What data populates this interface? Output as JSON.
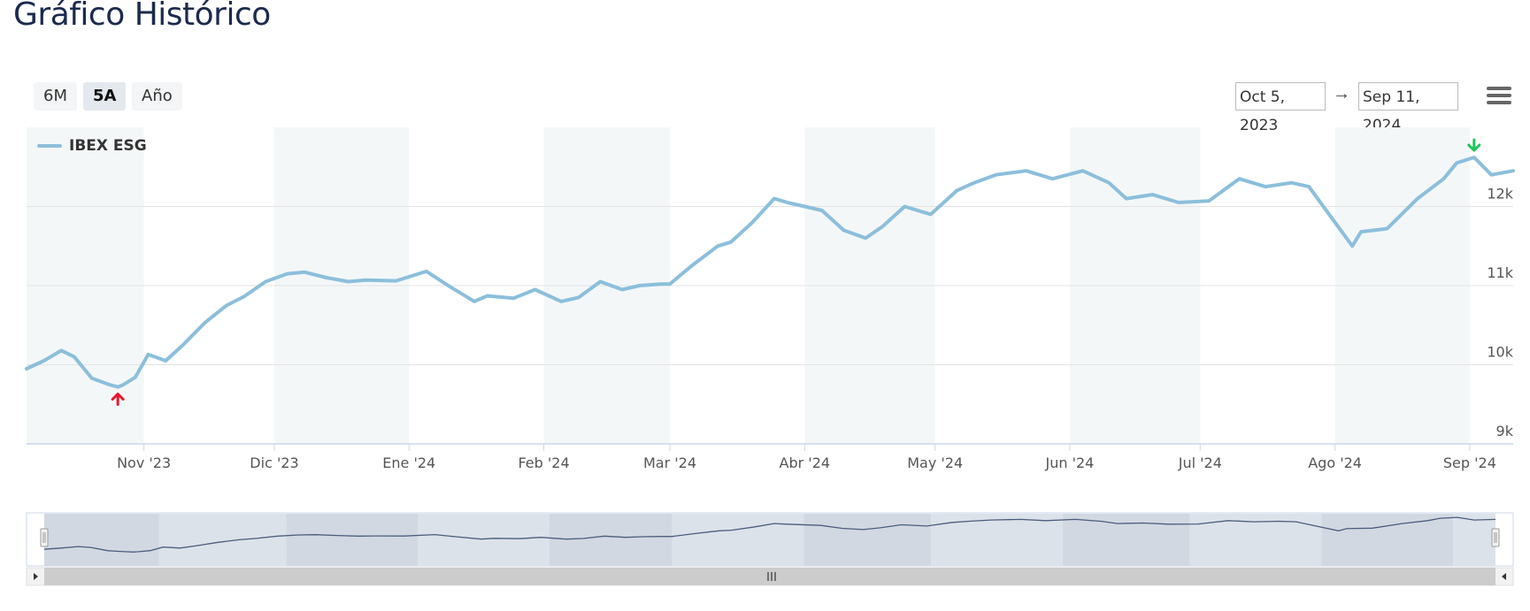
{
  "page": {
    "title": "Gráfico Histórico"
  },
  "range_selector": {
    "buttons": [
      {
        "label": "6M",
        "active": false
      },
      {
        "label": "5A",
        "active": true
      },
      {
        "label": "Año",
        "active": false
      }
    ],
    "from": "Oct 5, 2023",
    "arrow": "→",
    "to": "Sep 11, 2024"
  },
  "menu_icon": "hamburger-menu-icon",
  "colors": {
    "line": "#8bbfdc",
    "band": "#f4f7f8",
    "navigator_line": "#4a5d7e",
    "min_marker": "#e8192c",
    "max_marker": "#22c55e"
  },
  "chart_data": {
    "type": "line",
    "series": [
      {
        "name": "IBEX ESG",
        "x": [
          "2023-10-05",
          "2023-10-09",
          "2023-10-13",
          "2023-10-16",
          "2023-10-20",
          "2023-10-24",
          "2023-10-26",
          "2023-10-27",
          "2023-10-30",
          "2023-11-02",
          "2023-11-06",
          "2023-11-10",
          "2023-11-15",
          "2023-11-20",
          "2023-11-24",
          "2023-11-29",
          "2023-12-04",
          "2023-12-08",
          "2023-12-13",
          "2023-12-18",
          "2023-12-22",
          "2023-12-29",
          "2024-01-05",
          "2024-01-10",
          "2024-01-16",
          "2024-01-19",
          "2024-01-25",
          "2024-01-30",
          "2024-02-05",
          "2024-02-09",
          "2024-02-14",
          "2024-02-19",
          "2024-02-23",
          "2024-02-28",
          "2024-03-01",
          "2024-03-06",
          "2024-03-12",
          "2024-03-15",
          "2024-03-20",
          "2024-03-25",
          "2024-03-28",
          "2024-04-05",
          "2024-04-10",
          "2024-04-15",
          "2024-04-19",
          "2024-04-24",
          "2024-04-30",
          "2024-05-06",
          "2024-05-10",
          "2024-05-15",
          "2024-05-22",
          "2024-05-28",
          "2024-06-04",
          "2024-06-10",
          "2024-06-14",
          "2024-06-20",
          "2024-06-26",
          "2024-07-03",
          "2024-07-10",
          "2024-07-16",
          "2024-07-22",
          "2024-07-26",
          "2024-08-01",
          "2024-08-05",
          "2024-08-07",
          "2024-08-13",
          "2024-08-20",
          "2024-08-26",
          "2024-08-29",
          "2024-09-02",
          "2024-09-06",
          "2024-09-11"
        ],
        "values": [
          9950,
          10050,
          10180,
          10100,
          9830,
          9750,
          9720,
          9740,
          9840,
          10130,
          10050,
          10250,
          10530,
          10750,
          10860,
          11050,
          11150,
          11170,
          11100,
          11050,
          11070,
          11060,
          11180,
          11000,
          10800,
          10870,
          10840,
          10950,
          10800,
          10850,
          11050,
          10950,
          11000,
          11020,
          11020,
          11250,
          11500,
          11550,
          11800,
          12100,
          12050,
          11950,
          11700,
          11600,
          11750,
          12000,
          11900,
          12200,
          12300,
          12400,
          12450,
          12350,
          12450,
          12300,
          12100,
          12150,
          12050,
          12070,
          12350,
          12250,
          12300,
          12250,
          11800,
          11500,
          11680,
          11720,
          12100,
          12350,
          12550,
          12620,
          12400,
          12450
        ]
      }
    ],
    "min_point": {
      "x": "2023-10-26",
      "value": 9720
    },
    "max_point": {
      "x": "2024-09-02",
      "value": 12620
    },
    "xticks": [
      "Nov '23",
      "Dic '23",
      "Ene '24",
      "Feb '24",
      "Mar '24",
      "Abr '24",
      "May '24",
      "Jun '24",
      "Jul '24",
      "Ago '24",
      "Sep '24"
    ],
    "yticks": [
      "9k",
      "10k",
      "11k",
      "12k"
    ],
    "ylim": [
      9000,
      13000
    ],
    "xlim": [
      "2023-10-05",
      "2024-09-11"
    ],
    "legend": "top-left",
    "grid": true
  }
}
